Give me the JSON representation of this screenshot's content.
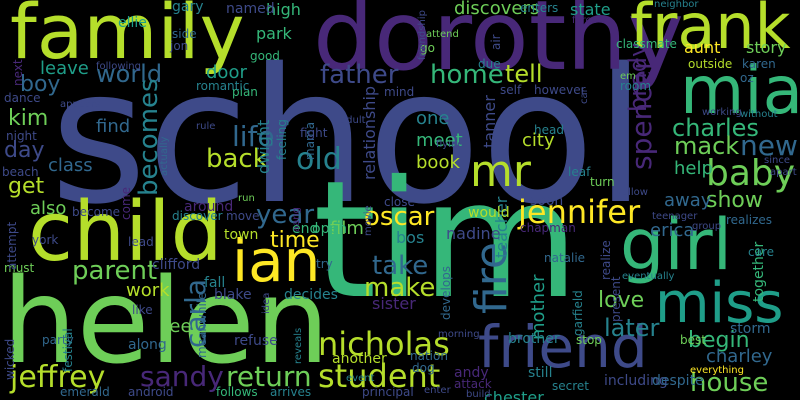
{
  "palette": {
    "background": "#000000",
    "purple": "#482878",
    "indigo": "#3e4a89",
    "blue": "#31688e",
    "teal": "#26828e",
    "cyan": "#1f9e89",
    "green": "#35b779",
    "lime": "#6ece58",
    "yellowgreen": "#b5de2b",
    "yellow": "#fde725"
  },
  "words": [
    {
      "text": "school",
      "color": "#3e4a89"
    },
    {
      "text": "tim",
      "color": "#35b779"
    },
    {
      "text": "helen",
      "color": "#6ece58"
    },
    {
      "text": "dorothy",
      "color": "#482878"
    },
    {
      "text": "family",
      "color": "#b5de2b"
    },
    {
      "text": "child",
      "color": "#b5de2b"
    },
    {
      "text": "frank",
      "color": "#b5de2b"
    },
    {
      "text": "mia",
      "color": "#35b779"
    },
    {
      "text": "girl",
      "color": "#35b779"
    },
    {
      "text": "miss",
      "color": "#1f9e89"
    },
    {
      "text": "friend",
      "color": "#3e4a89"
    },
    {
      "text": "ian",
      "color": "#fde725"
    },
    {
      "text": "jennifer",
      "color": "#fde725"
    },
    {
      "text": "nicholas",
      "color": "#b5de2b"
    },
    {
      "text": "student",
      "color": "#b5de2b"
    },
    {
      "text": "jeffrey",
      "color": "#b5de2b"
    },
    {
      "text": "return",
      "color": "#6ece58"
    },
    {
      "text": "house",
      "color": "#6ece58"
    },
    {
      "text": "mr",
      "color": "#b5de2b"
    },
    {
      "text": "spencer",
      "color": "#482878"
    },
    {
      "text": "baby",
      "color": "#6ece58"
    },
    {
      "text": "charles",
      "color": "#35b779"
    },
    {
      "text": "mack",
      "color": "#6ece58"
    },
    {
      "text": "new",
      "color": "#31688e"
    },
    {
      "text": "fire",
      "color": "#31688e"
    },
    {
      "text": "oscar",
      "color": "#fde725"
    },
    {
      "text": "parent",
      "color": "#6ece58"
    },
    {
      "text": "sandy",
      "color": "#482878"
    },
    {
      "text": "carla",
      "color": "#31688e"
    },
    {
      "text": "year",
      "color": "#31688e"
    },
    {
      "text": "father",
      "color": "#3e4a89"
    },
    {
      "text": "home",
      "color": "#35b779"
    },
    {
      "text": "tell",
      "color": "#b5de2b"
    },
    {
      "text": "world",
      "color": "#31688e"
    },
    {
      "text": "boy",
      "color": "#31688e"
    },
    {
      "text": "old",
      "color": "#26828e"
    },
    {
      "text": "life",
      "color": "#31688e"
    },
    {
      "text": "back",
      "color": "#b5de2b"
    },
    {
      "text": "becomes",
      "color": "#26828e"
    },
    {
      "text": "kim",
      "color": "#6ece58"
    },
    {
      "text": "day",
      "color": "#3e4a89"
    },
    {
      "text": "get",
      "color": "#b5de2b"
    },
    {
      "text": "time",
      "color": "#fde725"
    },
    {
      "text": "take",
      "color": "#31688e"
    },
    {
      "text": "make",
      "color": "#b5de2b"
    },
    {
      "text": "later",
      "color": "#26828e"
    },
    {
      "text": "love",
      "color": "#6ece58"
    },
    {
      "text": "begin",
      "color": "#35b779"
    },
    {
      "text": "show",
      "color": "#6ece58"
    },
    {
      "text": "brady",
      "color": "#482878"
    },
    {
      "text": "city",
      "color": "#b5de2b"
    },
    {
      "text": "meet",
      "color": "#35b779"
    },
    {
      "text": "book",
      "color": "#b5de2b"
    },
    {
      "text": "one",
      "color": "#26828e"
    },
    {
      "text": "help",
      "color": "#35b779"
    },
    {
      "text": "away",
      "color": "#31688e"
    },
    {
      "text": "erica",
      "color": "#31688e"
    },
    {
      "text": "charley",
      "color": "#31688e"
    },
    {
      "text": "work",
      "color": "#b5de2b"
    },
    {
      "text": "see",
      "color": "#6ece58"
    },
    {
      "text": "sister",
      "color": "#482878"
    },
    {
      "text": "teacher",
      "color": "#26828e"
    },
    {
      "text": "mother",
      "color": "#1f9e89"
    },
    {
      "text": "tanner",
      "color": "#3e4a89"
    },
    {
      "text": "film",
      "color": "#6ece58"
    },
    {
      "text": "bos",
      "color": "#26828e"
    },
    {
      "text": "nadine",
      "color": "#3e4a89"
    },
    {
      "text": "class",
      "color": "#31688e"
    },
    {
      "text": "also",
      "color": "#6ece58"
    },
    {
      "text": "find",
      "color": "#31688e"
    },
    {
      "text": "leave",
      "color": "#1f9e89"
    },
    {
      "text": "door",
      "color": "#1f9e89"
    },
    {
      "text": "high",
      "color": "#35b779"
    },
    {
      "text": "park",
      "color": "#35b779"
    },
    {
      "text": "named",
      "color": "#3e4a89"
    },
    {
      "text": "discovers",
      "color": "#6ece58"
    },
    {
      "text": "state",
      "color": "#1f9e89"
    },
    {
      "text": "aunt",
      "color": "#fde725"
    },
    {
      "text": "story",
      "color": "#6ece58"
    },
    {
      "text": "classmate",
      "color": "#35b779"
    },
    {
      "text": "relationship",
      "color": "#3e4a89"
    },
    {
      "text": "dwight",
      "color": "#26828e"
    },
    {
      "text": "chester",
      "color": "#1f9e89"
    },
    {
      "text": "brother",
      "color": "#26828e"
    },
    {
      "text": "andy",
      "color": "#482878"
    },
    {
      "text": "still",
      "color": "#26828e"
    },
    {
      "text": "storm",
      "color": "#31688e"
    },
    {
      "text": "along",
      "color": "#31688e"
    },
    {
      "text": "refuse",
      "color": "#3e4a89"
    },
    {
      "text": "another",
      "color": "#b5de2b"
    },
    {
      "text": "fall",
      "color": "#26828e"
    },
    {
      "text": "blake",
      "color": "#3e4a89"
    },
    {
      "text": "decides",
      "color": "#26828e"
    },
    {
      "text": "ellie",
      "color": "#1f9e89"
    },
    {
      "text": "gary",
      "color": "#26828e"
    },
    {
      "text": "enters",
      "color": "#26828e"
    },
    {
      "text": "around",
      "color": "#482878"
    },
    {
      "text": "clifford",
      "color": "#3e4a89"
    },
    {
      "text": "town",
      "color": "#b5de2b"
    },
    {
      "text": "open",
      "color": "#35b779"
    },
    {
      "text": "end",
      "color": "#35b779"
    },
    {
      "text": "together",
      "color": "#35b779"
    },
    {
      "text": "including",
      "color": "#3e4a89"
    },
    {
      "text": "despite",
      "color": "#31688e"
    },
    {
      "text": "secret",
      "color": "#26828e"
    },
    {
      "text": "principal",
      "color": "#3e4a89"
    },
    {
      "text": "emerald",
      "color": "#31688e"
    },
    {
      "text": "android",
      "color": "#3e4a89"
    },
    {
      "text": "follows",
      "color": "#35b779"
    },
    {
      "text": "arrives",
      "color": "#26828e"
    },
    {
      "text": "try",
      "color": "#31688e"
    },
    {
      "text": "like",
      "color": "#3e4a89"
    },
    {
      "text": "party",
      "color": "#31688e"
    },
    {
      "text": "wicked",
      "color": "#3e4a89"
    },
    {
      "text": "festival",
      "color": "#26828e"
    },
    {
      "text": "meanwhile",
      "color": "#31688e"
    },
    {
      "text": "must",
      "color": "#6ece58"
    },
    {
      "text": "york",
      "color": "#3e4a89"
    },
    {
      "text": "lead",
      "color": "#3e4a89"
    },
    {
      "text": "come",
      "color": "#482878"
    },
    {
      "text": "become",
      "color": "#3e4a89"
    },
    {
      "text": "discover",
      "color": "#26828e"
    },
    {
      "text": "move",
      "color": "#3e4a89"
    },
    {
      "text": "soon",
      "color": "#3e4a89"
    },
    {
      "text": "nation",
      "color": "#31688e"
    },
    {
      "text": "dog",
      "color": "#31688e"
    },
    {
      "text": "garfield",
      "color": "#26828e"
    },
    {
      "text": "develops",
      "color": "#31688e"
    },
    {
      "text": "natalie",
      "color": "#31688e"
    },
    {
      "text": "chapman",
      "color": "#482878"
    },
    {
      "text": "would",
      "color": "#b5de2b"
    },
    {
      "text": "realize",
      "color": "#3e4a89"
    },
    {
      "text": "present",
      "color": "#3e4a89"
    },
    {
      "text": "realizes",
      "color": "#31688e"
    },
    {
      "text": "care",
      "color": "#26828e"
    },
    {
      "text": "eventually",
      "color": "#26828e"
    },
    {
      "text": "group",
      "color": "#3e4a89"
    },
    {
      "text": "teenager",
      "color": "#3e4a89"
    },
    {
      "text": "best",
      "color": "#6ece58"
    },
    {
      "text": "stop",
      "color": "#6ece58"
    },
    {
      "text": "attack",
      "color": "#482878"
    },
    {
      "text": "everything",
      "color": "#fde725"
    },
    {
      "text": "mama",
      "color": "#31688e"
    },
    {
      "text": "feeling",
      "color": "#26828e"
    },
    {
      "text": "head",
      "color": "#26828e"
    },
    {
      "text": "leaf",
      "color": "#26828e"
    },
    {
      "text": "turn",
      "color": "#6ece58"
    },
    {
      "text": "close",
      "color": "#3e4a89"
    },
    {
      "text": "flying",
      "color": "#3e4a89"
    },
    {
      "text": "side",
      "color": "#31688e"
    },
    {
      "text": "jon",
      "color": "#3e4a89"
    },
    {
      "text": "force",
      "color": "#482878"
    },
    {
      "text": "attend",
      "color": "#6ece58"
    },
    {
      "text": "go",
      "color": "#6ece58"
    },
    {
      "text": "air",
      "color": "#3e4a89"
    },
    {
      "text": "due",
      "color": "#26828e"
    },
    {
      "text": "self",
      "color": "#3e4a89"
    },
    {
      "text": "however",
      "color": "#3e4a89"
    },
    {
      "text": "mind",
      "color": "#3e4a89"
    },
    {
      "text": "neighbor",
      "color": "#26828e"
    },
    {
      "text": "outside",
      "color": "#b5de2b"
    },
    {
      "text": "karen",
      "color": "#31688e"
    },
    {
      "text": "oz",
      "color": "#31688e"
    },
    {
      "text": "em",
      "color": "#6ece58"
    },
    {
      "text": "room",
      "color": "#26828e"
    },
    {
      "text": "working",
      "color": "#3e4a89"
    },
    {
      "text": "without",
      "color": "#26828e"
    },
    {
      "text": "since",
      "color": "#3e4a89"
    },
    {
      "text": "dance",
      "color": "#3e4a89"
    },
    {
      "text": "night",
      "color": "#3e4a89"
    },
    {
      "text": "beach",
      "color": "#3e4a89"
    },
    {
      "text": "good",
      "color": "#35b779"
    },
    {
      "text": "plan",
      "color": "#35b779"
    },
    {
      "text": "romantic",
      "color": "#26828e"
    },
    {
      "text": "fight",
      "color": "#3e4a89"
    },
    {
      "text": "rule",
      "color": "#3e4a89"
    },
    {
      "text": "run",
      "color": "#6ece58"
    },
    {
      "text": "adult",
      "color": "#3e4a89"
    },
    {
      "text": "next",
      "color": "#482878"
    },
    {
      "text": "following",
      "color": "#3e4a89"
    },
    {
      "text": "appears",
      "color": "#3e4a89"
    },
    {
      "text": "actually",
      "color": "#31688e"
    },
    {
      "text": "attempt",
      "color": "#3e4a89"
    },
    {
      "text": "idea",
      "color": "#3e4a89"
    },
    {
      "text": "event",
      "color": "#26828e"
    },
    {
      "text": "morning",
      "color": "#3e4a89"
    },
    {
      "text": "reveals",
      "color": "#26828e"
    },
    {
      "text": "movie",
      "color": "#3e4a89"
    },
    {
      "text": "aang",
      "color": "#482878"
    },
    {
      "text": "enter",
      "color": "#3e4a89"
    },
    {
      "text": "build",
      "color": "#3e4a89"
    },
    {
      "text": "car",
      "color": "#3e4a89"
    },
    {
      "text": "friendship",
      "color": "#3e4a89"
    },
    {
      "text": "yellow",
      "color": "#3e4a89"
    },
    {
      "text": "apart",
      "color": "#3e4a89"
    }
  ]
}
